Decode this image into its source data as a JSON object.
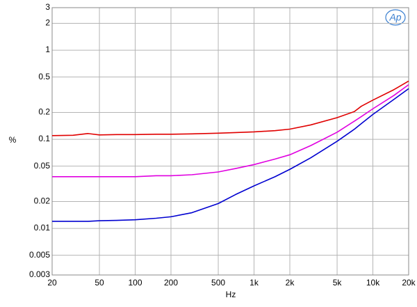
{
  "chart_data": {
    "type": "line",
    "logo": "Ap",
    "xlabel": "Hz",
    "ylabel": "%",
    "xscale": "log",
    "yscale": "log",
    "grid": true,
    "xlim": [
      20,
      20000
    ],
    "ylim": [
      0.003,
      3
    ],
    "xticks": [
      20,
      50,
      100,
      200,
      500,
      {
        "value": 1000,
        "label": "1k"
      },
      {
        "value": 2000,
        "label": "2k"
      },
      {
        "value": 5000,
        "label": "5k"
      },
      {
        "value": 10000,
        "label": "10k"
      },
      {
        "value": 20000,
        "label": "20k"
      }
    ],
    "yticks": [
      0.003,
      0.005,
      0.01,
      0.02,
      0.05,
      0.1,
      0.2,
      0.5,
      1,
      2,
      3
    ],
    "x": [
      20,
      30,
      40,
      50,
      70,
      100,
      150,
      200,
      300,
      500,
      700,
      1000,
      1500,
      2000,
      3000,
      5000,
      7000,
      8000,
      10000,
      15000,
      20000
    ],
    "series": [
      {
        "color": "#e00000",
        "values": [
          0.11,
          0.111,
          0.116,
          0.112,
          0.113,
          0.113,
          0.114,
          0.114,
          0.115,
          0.117,
          0.119,
          0.121,
          0.125,
          0.13,
          0.145,
          0.175,
          0.205,
          0.235,
          0.275,
          0.36,
          0.45
        ]
      },
      {
        "color": "#e000e0",
        "values": [
          0.038,
          0.038,
          0.038,
          0.038,
          0.038,
          0.038,
          0.039,
          0.039,
          0.04,
          0.043,
          0.047,
          0.052,
          0.06,
          0.067,
          0.085,
          0.12,
          0.16,
          0.18,
          0.22,
          0.31,
          0.41
        ]
      },
      {
        "color": "#0000d0",
        "values": [
          0.012,
          0.012,
          0.012,
          0.0122,
          0.0123,
          0.0125,
          0.013,
          0.0135,
          0.015,
          0.019,
          0.024,
          0.03,
          0.038,
          0.046,
          0.062,
          0.095,
          0.13,
          0.15,
          0.19,
          0.28,
          0.37
        ]
      }
    ]
  }
}
